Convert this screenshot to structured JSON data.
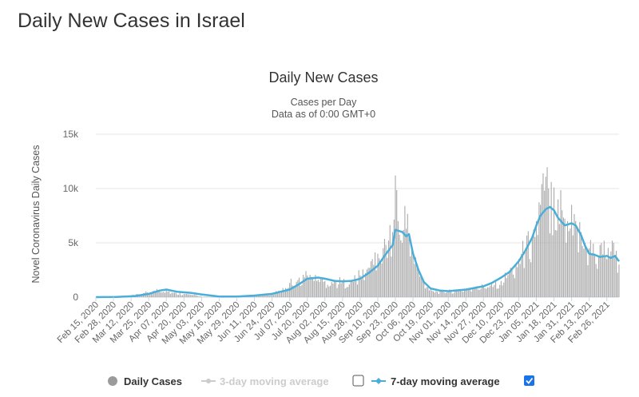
{
  "page": {
    "heading": "Daily New Cases in Israel"
  },
  "chart_data": {
    "type": "bar",
    "title": "Daily New Cases",
    "subtitle_lines": [
      "Cases per Day",
      "Data as of 0:00 GMT+0"
    ],
    "xlabel": "",
    "ylabel": "Novel Coronavirus Daily Cases",
    "ylim": [
      0,
      15000
    ],
    "y_ticks": [
      0,
      5000,
      10000,
      15000
    ],
    "y_tick_labels": [
      "0",
      "5k",
      "10k",
      "15k"
    ],
    "x_start_date": "Feb 15, 2020",
    "x_end_date": "Mar 07, 2021",
    "x_tick_labels": [
      "Feb 15, 2020",
      "Feb 28, 2020",
      "Mar 12, 2020",
      "Mar 25, 2020",
      "Apr 07, 2020",
      "Apr 20, 2020",
      "May 03, 2020",
      "May 16, 2020",
      "May 29, 2020",
      "Jun 11, 2020",
      "Jun 24, 2020",
      "Jul 07, 2020",
      "Jul 20, 2020",
      "Aug 02, 2020",
      "Aug 15, 2020",
      "Aug 28, 2020",
      "Sep 10, 2020",
      "Sep 23, 2020",
      "Oct 06, 2020",
      "Oct 19, 2020",
      "Nov 01, 2020",
      "Nov 14, 2020",
      "Nov 27, 2020",
      "Dec 10, 2020",
      "Dec 23, 2020",
      "Jan 05, 2021",
      "Jan 18, 2021",
      "Jan 31, 2021",
      "Feb 13, 2021",
      "Feb 26, 2021"
    ],
    "grid": true,
    "legend_position": "bottom",
    "series": [
      {
        "name": "Daily Cases",
        "type": "bar",
        "color": "#aaaaaa",
        "visible": true,
        "dates": [
          "2020-02-15",
          "2020-02-22",
          "2020-03-01",
          "2020-03-08",
          "2020-03-15",
          "2020-03-22",
          "2020-03-29",
          "2020-04-02",
          "2020-04-07",
          "2020-04-12",
          "2020-04-20",
          "2020-04-27",
          "2020-05-03",
          "2020-05-10",
          "2020-05-16",
          "2020-05-29",
          "2020-06-11",
          "2020-06-18",
          "2020-06-24",
          "2020-07-01",
          "2020-07-07",
          "2020-07-14",
          "2020-07-20",
          "2020-07-24",
          "2020-07-28",
          "2020-08-02",
          "2020-08-09",
          "2020-08-15",
          "2020-08-22",
          "2020-08-28",
          "2020-09-03",
          "2020-09-06",
          "2020-09-10",
          "2020-09-14",
          "2020-09-18",
          "2020-09-21",
          "2020-09-23",
          "2020-09-25",
          "2020-09-28",
          "2020-09-30",
          "2020-10-03",
          "2020-10-06",
          "2020-10-10",
          "2020-10-14",
          "2020-10-19",
          "2020-10-24",
          "2020-11-01",
          "2020-11-07",
          "2020-11-14",
          "2020-11-21",
          "2020-11-27",
          "2020-12-03",
          "2020-12-10",
          "2020-12-16",
          "2020-12-23",
          "2020-12-28",
          "2021-01-02",
          "2021-01-05",
          "2021-01-08",
          "2021-01-11",
          "2021-01-14",
          "2021-01-18",
          "2021-01-21",
          "2021-01-24",
          "2021-01-28",
          "2021-01-31",
          "2021-02-03",
          "2021-02-07",
          "2021-02-10",
          "2021-02-13",
          "2021-02-17",
          "2021-02-21",
          "2021-02-24",
          "2021-02-26",
          "2021-03-01",
          "2021-03-04",
          "2021-03-07"
        ],
        "values": [
          0,
          0,
          10,
          50,
          200,
          400,
          600,
          700,
          600,
          400,
          300,
          200,
          50,
          20,
          20,
          50,
          150,
          250,
          300,
          600,
          1300,
          1800,
          2000,
          1700,
          1600,
          1500,
          1500,
          1400,
          1600,
          2000,
          2700,
          3500,
          4000,
          4500,
          5200,
          6000,
          11200,
          7000,
          5000,
          8400,
          5500,
          4000,
          2500,
          1400,
          700,
          500,
          550,
          600,
          700,
          800,
          1000,
          1200,
          1500,
          2200,
          3500,
          4500,
          5500,
          7000,
          8500,
          9800,
          10000,
          10100,
          9000,
          8000,
          7000,
          8500,
          7000,
          6000,
          5000,
          4500,
          4000,
          4800,
          5200,
          3500,
          4200,
          3800,
          3000
        ]
      },
      {
        "name": "3-day moving average",
        "type": "line",
        "color": "#cccccc",
        "visible": false,
        "values": []
      },
      {
        "name": "7-day moving average",
        "type": "line",
        "color": "#4aaed9",
        "visible": true,
        "dates": [
          "2020-02-15",
          "2020-03-01",
          "2020-03-15",
          "2020-03-25",
          "2020-04-02",
          "2020-04-07",
          "2020-04-15",
          "2020-04-25",
          "2020-05-03",
          "2020-05-16",
          "2020-05-29",
          "2020-06-11",
          "2020-06-24",
          "2020-07-07",
          "2020-07-14",
          "2020-07-20",
          "2020-07-28",
          "2020-08-02",
          "2020-08-09",
          "2020-08-15",
          "2020-08-22",
          "2020-08-28",
          "2020-09-03",
          "2020-09-10",
          "2020-09-15",
          "2020-09-18",
          "2020-09-21",
          "2020-09-23",
          "2020-09-28",
          "2020-10-01",
          "2020-10-03",
          "2020-10-06",
          "2020-10-10",
          "2020-10-14",
          "2020-10-19",
          "2020-10-26",
          "2020-11-01",
          "2020-11-14",
          "2020-11-27",
          "2020-12-03",
          "2020-12-10",
          "2020-12-16",
          "2020-12-23",
          "2020-12-28",
          "2021-01-02",
          "2021-01-05",
          "2021-01-08",
          "2021-01-12",
          "2021-01-15",
          "2021-01-18",
          "2021-01-21",
          "2021-01-26",
          "2021-01-31",
          "2021-02-03",
          "2021-02-07",
          "2021-02-10",
          "2021-02-13",
          "2021-02-17",
          "2021-02-21",
          "2021-02-26",
          "2021-03-01",
          "2021-03-04",
          "2021-03-07"
        ],
        "values": [
          0,
          20,
          100,
          300,
          600,
          700,
          500,
          400,
          250,
          50,
          50,
          150,
          300,
          700,
          1200,
          1700,
          1800,
          1700,
          1500,
          1450,
          1500,
          1700,
          2200,
          2900,
          3800,
          4300,
          4800,
          6200,
          6000,
          5600,
          5800,
          4000,
          2500,
          1400,
          800,
          600,
          550,
          700,
          1000,
          1300,
          1800,
          2300,
          3300,
          4300,
          5500,
          6600,
          7500,
          8100,
          8300,
          8000,
          7300,
          6600,
          6800,
          6600,
          5700,
          4700,
          4000,
          3900,
          3700,
          3800,
          3600,
          3800,
          3300
        ]
      }
    ]
  }
}
